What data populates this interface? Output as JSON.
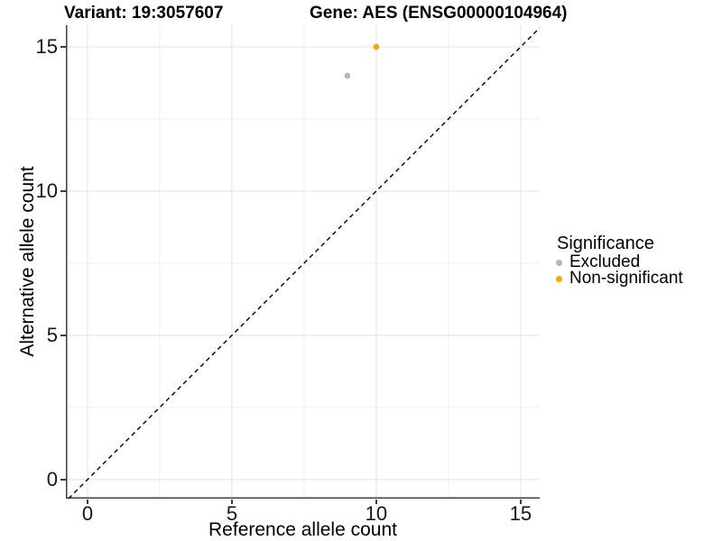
{
  "chart_data": {
    "type": "scatter",
    "titles": {
      "left": "Variant: 19:3057607",
      "right": "Gene: AES (ENSG00000104964)"
    },
    "xlabel": "Reference allele count",
    "ylabel": "Alternative allele count",
    "xlim": [
      -0.75,
      15.66
    ],
    "ylim": [
      -0.66,
      15.75
    ],
    "x_ticks": [
      0,
      5,
      10,
      15
    ],
    "y_ticks": [
      0,
      5,
      10,
      15
    ],
    "minor_tick_interval": 2.5,
    "grid": {
      "major_color": "#e3e3e3",
      "minor_color": "#efefef"
    },
    "axis_line_color": "#3f3f3f",
    "identity_line": {
      "equation": "y = x",
      "style": "dashed",
      "color": "#000000"
    },
    "series": [
      {
        "name": "Excluded",
        "color": "#b7b7b7",
        "points": [
          {
            "x": 9,
            "y": 14
          }
        ]
      },
      {
        "name": "Non-significant",
        "color": "#ffa500",
        "points": [
          {
            "x": 10,
            "y": 15
          }
        ]
      }
    ],
    "legend": {
      "title": "Significance",
      "position": "right",
      "entries": [
        {
          "label": "Excluded",
          "color": "#b7b7b7"
        },
        {
          "label": "Non-significant",
          "color": "#ffa500"
        }
      ]
    }
  }
}
